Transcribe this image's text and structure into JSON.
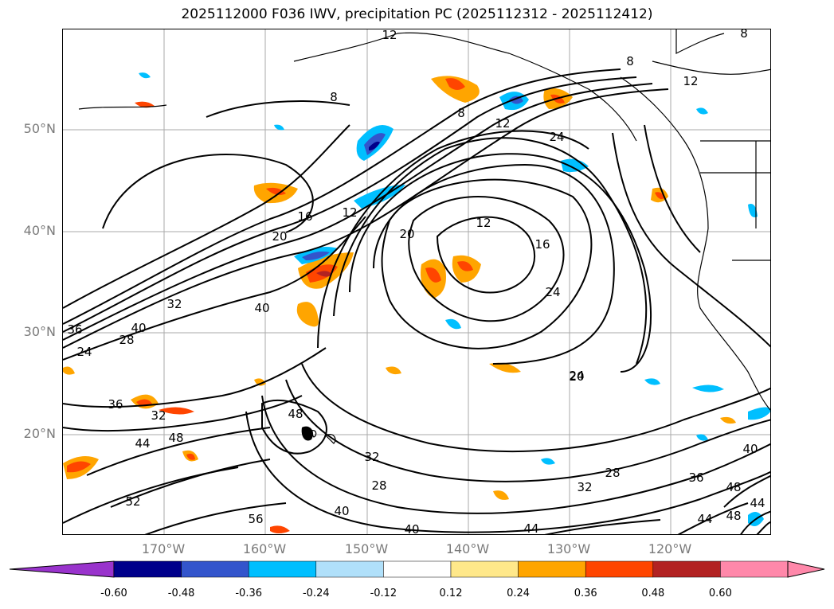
{
  "title": "2025112000 F036 IWV, precipitation PC (2025112312 - 2025112412)",
  "latitude_labels": [
    "50°N",
    "40°N",
    "30°N",
    "20°N"
  ],
  "longitude_labels": [
    "170°W",
    "160°W",
    "150°W",
    "140°W",
    "130°W",
    "120°W"
  ],
  "contour_labels": [
    "12",
    "8",
    "8",
    "12",
    "24",
    "12",
    "16",
    "20",
    "24",
    "12",
    "20",
    "16",
    "24",
    "32",
    "40",
    "36",
    "40",
    "24",
    "28",
    "36",
    "32",
    "48",
    "44",
    "48",
    "32",
    "28",
    "32",
    "28",
    "20",
    "52",
    "56",
    "40",
    "40",
    "44",
    "36",
    "40",
    "48",
    "44",
    "48",
    "44",
    "8",
    "8",
    "12"
  ],
  "colorbar": {
    "ticks": [
      "-0.60",
      "-0.48",
      "-0.36",
      "-0.24",
      "-0.12",
      "0.12",
      "0.24",
      "0.36",
      "0.48",
      "0.60"
    ],
    "colors": [
      "#9933cc",
      "#00008b",
      "#3355cc",
      "#00bfff",
      "#b0e0fa",
      "#ffffff",
      "#ffe88a",
      "#ffa500",
      "#ff4500",
      "#b22222",
      "#ff88aa",
      "#ff88aa"
    ]
  }
}
